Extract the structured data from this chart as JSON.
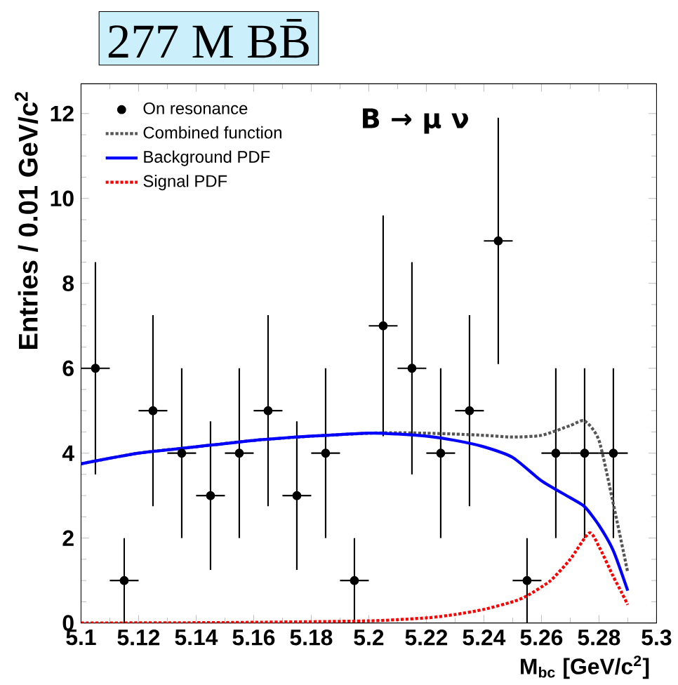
{
  "chart_data": {
    "type": "scatter",
    "title": "B → μ ν",
    "xlabel": "M$_{bc}$ [GeV/c$^{2}$]",
    "ylabel": "Entries / 0.01 GeV/c$^{2}$",
    "annotations": [
      "277 M BB̄"
    ],
    "xlim": [
      5.1,
      5.3
    ],
    "ylim": [
      0,
      12.7
    ],
    "xticks": [
      5.1,
      5.12,
      5.14,
      5.16,
      5.18,
      5.2,
      5.22,
      5.24,
      5.26,
      5.28,
      5.3
    ],
    "yticks": [
      0,
      2,
      4,
      6,
      8,
      10,
      12
    ],
    "grid": false,
    "legend": "top left",
    "series": [
      {
        "name": "On resonance",
        "marker": "circle",
        "color": "#000000",
        "x": [
          5.105,
          5.115,
          5.125,
          5.135,
          5.145,
          5.155,
          5.165,
          5.175,
          5.185,
          5.195,
          5.205,
          5.215,
          5.225,
          5.235,
          5.245,
          5.255,
          5.265,
          5.275,
          5.285
        ],
        "values": [
          6,
          1,
          5,
          4,
          3,
          4,
          5,
          3,
          4,
          1,
          7,
          6,
          4,
          5,
          9,
          1,
          4,
          4,
          4
        ],
        "errors": [
          [
            3.5,
            8.5
          ],
          [
            0,
            2
          ],
          [
            2.75,
            7.25
          ],
          [
            2,
            6
          ],
          [
            1.25,
            4.75
          ],
          [
            2,
            6
          ],
          [
            2.75,
            7.25
          ],
          [
            1.25,
            4.75
          ],
          [
            2,
            6
          ],
          [
            0,
            2
          ],
          [
            4.4,
            9.6
          ],
          [
            3.5,
            8.5
          ],
          [
            2,
            6
          ],
          [
            2.75,
            7.25
          ],
          [
            6.1,
            11.9
          ],
          [
            0,
            2
          ],
          [
            2,
            6
          ],
          [
            2,
            6
          ],
          [
            2,
            6
          ]
        ],
        "xerrors": [
          0.005,
          0.005,
          0.005,
          0.005,
          0.005,
          0.005,
          0.005,
          0.005,
          0.005,
          0.005,
          0.005,
          0.005,
          0.005,
          0.005,
          0.005,
          0.005,
          0.005,
          0.005,
          0.005
        ]
      },
      {
        "name": "Combined function",
        "type": "line",
        "marker": "none",
        "line_style": "dotted",
        "color": "#555555",
        "x": [
          5.1,
          5.12,
          5.14,
          5.16,
          5.18,
          5.2,
          5.21,
          5.22,
          5.23,
          5.24,
          5.25,
          5.26,
          5.27,
          5.275,
          5.28,
          5.285,
          5.29
        ],
        "values": [
          3.75,
          4.0,
          4.15,
          4.3,
          4.4,
          4.47,
          4.48,
          4.47,
          4.45,
          4.42,
          4.38,
          4.42,
          4.65,
          4.76,
          4.3,
          2.8,
          1.19
        ]
      },
      {
        "name": "Background PDF",
        "type": "line",
        "marker": "none",
        "line_style": "solid",
        "color": "#0000ff",
        "x": [
          5.1,
          5.12,
          5.14,
          5.16,
          5.18,
          5.2,
          5.21,
          5.22,
          5.23,
          5.24,
          5.25,
          5.26,
          5.27,
          5.275,
          5.28,
          5.285,
          5.29
        ],
        "values": [
          3.75,
          4.0,
          4.15,
          4.3,
          4.4,
          4.47,
          4.45,
          4.4,
          4.3,
          4.15,
          3.9,
          3.35,
          2.95,
          2.74,
          2.3,
          1.7,
          0.76
        ]
      },
      {
        "name": "Signal PDF",
        "type": "line",
        "marker": "none",
        "line_style": "dotted",
        "color": "#ff0000",
        "x": [
          5.1,
          5.15,
          5.2,
          5.22,
          5.23,
          5.24,
          5.25,
          5.255,
          5.263,
          5.27,
          5.2766,
          5.28,
          5.285,
          5.288,
          5.29
        ],
        "values": [
          0,
          0.01,
          0.05,
          0.12,
          0.2,
          0.32,
          0.5,
          0.64,
          0.99,
          1.5,
          2.12,
          1.8,
          1.09,
          0.7,
          0.43
        ]
      }
    ]
  }
}
